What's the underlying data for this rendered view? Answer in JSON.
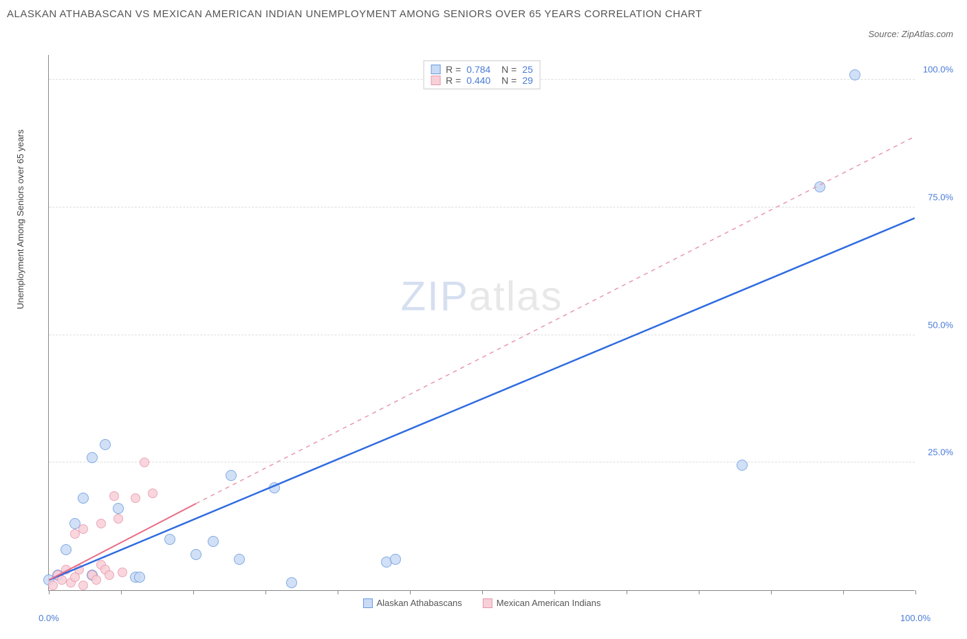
{
  "title": "ALASKAN ATHABASCAN VS MEXICAN AMERICAN INDIAN UNEMPLOYMENT AMONG SENIORS OVER 65 YEARS CORRELATION CHART",
  "source": "Source: ZipAtlas.com",
  "y_axis_label": "Unemployment Among Seniors over 65 years",
  "watermark_a": "ZIP",
  "watermark_b": "atlas",
  "chart": {
    "type": "scatter",
    "xlim": [
      0,
      100
    ],
    "ylim": [
      0,
      105
    ],
    "x_ticks": [
      0,
      8.33,
      16.66,
      25,
      33.33,
      41.66,
      50,
      58.33,
      66.66,
      75,
      83.33,
      91.66,
      100
    ],
    "x_tick_labels": {
      "0": "0.0%",
      "100": "100.0%"
    },
    "y_gridlines": [
      25,
      50,
      75,
      100
    ],
    "y_tick_labels": {
      "25": "25.0%",
      "50": "50.0%",
      "75": "75.0%",
      "100": "100.0%"
    },
    "background_color": "#ffffff",
    "grid_color": "#dddddd",
    "axis_color": "#888888",
    "label_color": "#4a7bd8"
  },
  "series": [
    {
      "name": "Alaskan Athabascans",
      "marker_fill": "#c9dbf5",
      "marker_stroke": "#6a9be0",
      "marker_radius": 8,
      "line_color": "#2e6be0",
      "line_width": 2.5,
      "line_dash": "none",
      "R": "0.784",
      "N": "25",
      "trend": {
        "x1": 0,
        "y1": 2,
        "x2": 100,
        "y2": 73
      },
      "dashed_ext": null,
      "points": [
        {
          "x": 0,
          "y": 2
        },
        {
          "x": 1,
          "y": 3
        },
        {
          "x": 2,
          "y": 8
        },
        {
          "x": 3,
          "y": 13
        },
        {
          "x": 4,
          "y": 18
        },
        {
          "x": 5,
          "y": 26
        },
        {
          "x": 6.5,
          "y": 28.5
        },
        {
          "x": 5,
          "y": 3
        },
        {
          "x": 8,
          "y": 16
        },
        {
          "x": 10,
          "y": 2.5
        },
        {
          "x": 10.5,
          "y": 2.5
        },
        {
          "x": 14,
          "y": 10
        },
        {
          "x": 17,
          "y": 7
        },
        {
          "x": 19,
          "y": 9.5
        },
        {
          "x": 21,
          "y": 22.5
        },
        {
          "x": 22,
          "y": 6
        },
        {
          "x": 26,
          "y": 20
        },
        {
          "x": 28,
          "y": 1.5
        },
        {
          "x": 39,
          "y": 5.5
        },
        {
          "x": 40,
          "y": 6
        },
        {
          "x": 80,
          "y": 24.5
        },
        {
          "x": 89,
          "y": 79
        },
        {
          "x": 93,
          "y": 101
        }
      ]
    },
    {
      "name": "Mexican American Indians",
      "marker_fill": "#f8d0d8",
      "marker_stroke": "#e897ab",
      "marker_radius": 7,
      "line_color": "#e86b85",
      "line_width": 2,
      "line_dash": "none",
      "R": "0.440",
      "N": "29",
      "trend": {
        "x1": 0,
        "y1": 2,
        "x2": 17,
        "y2": 17
      },
      "dashed_ext": {
        "x1": 17,
        "y1": 17,
        "x2": 100,
        "y2": 89
      },
      "points": [
        {
          "x": 0.5,
          "y": 1
        },
        {
          "x": 1,
          "y": 3
        },
        {
          "x": 1.5,
          "y": 2
        },
        {
          "x": 2,
          "y": 4
        },
        {
          "x": 2.5,
          "y": 1.5
        },
        {
          "x": 3,
          "y": 2.5
        },
        {
          "x": 3,
          "y": 11
        },
        {
          "x": 3.5,
          "y": 4
        },
        {
          "x": 4,
          "y": 1
        },
        {
          "x": 4,
          "y": 12
        },
        {
          "x": 5,
          "y": 3
        },
        {
          "x": 5.5,
          "y": 2
        },
        {
          "x": 6,
          "y": 5
        },
        {
          "x": 6,
          "y": 13
        },
        {
          "x": 6.5,
          "y": 4
        },
        {
          "x": 7,
          "y": 3
        },
        {
          "x": 7.5,
          "y": 18.5
        },
        {
          "x": 8,
          "y": 14
        },
        {
          "x": 8.5,
          "y": 3.5
        },
        {
          "x": 10,
          "y": 18
        },
        {
          "x": 11,
          "y": 25
        },
        {
          "x": 12,
          "y": 19
        }
      ]
    }
  ],
  "bottom_legend": [
    {
      "label": "Alaskan Athabascans",
      "fill": "#c9dbf5",
      "stroke": "#6a9be0"
    },
    {
      "label": "Mexican American Indians",
      "fill": "#f8d0d8",
      "stroke": "#e897ab"
    }
  ]
}
